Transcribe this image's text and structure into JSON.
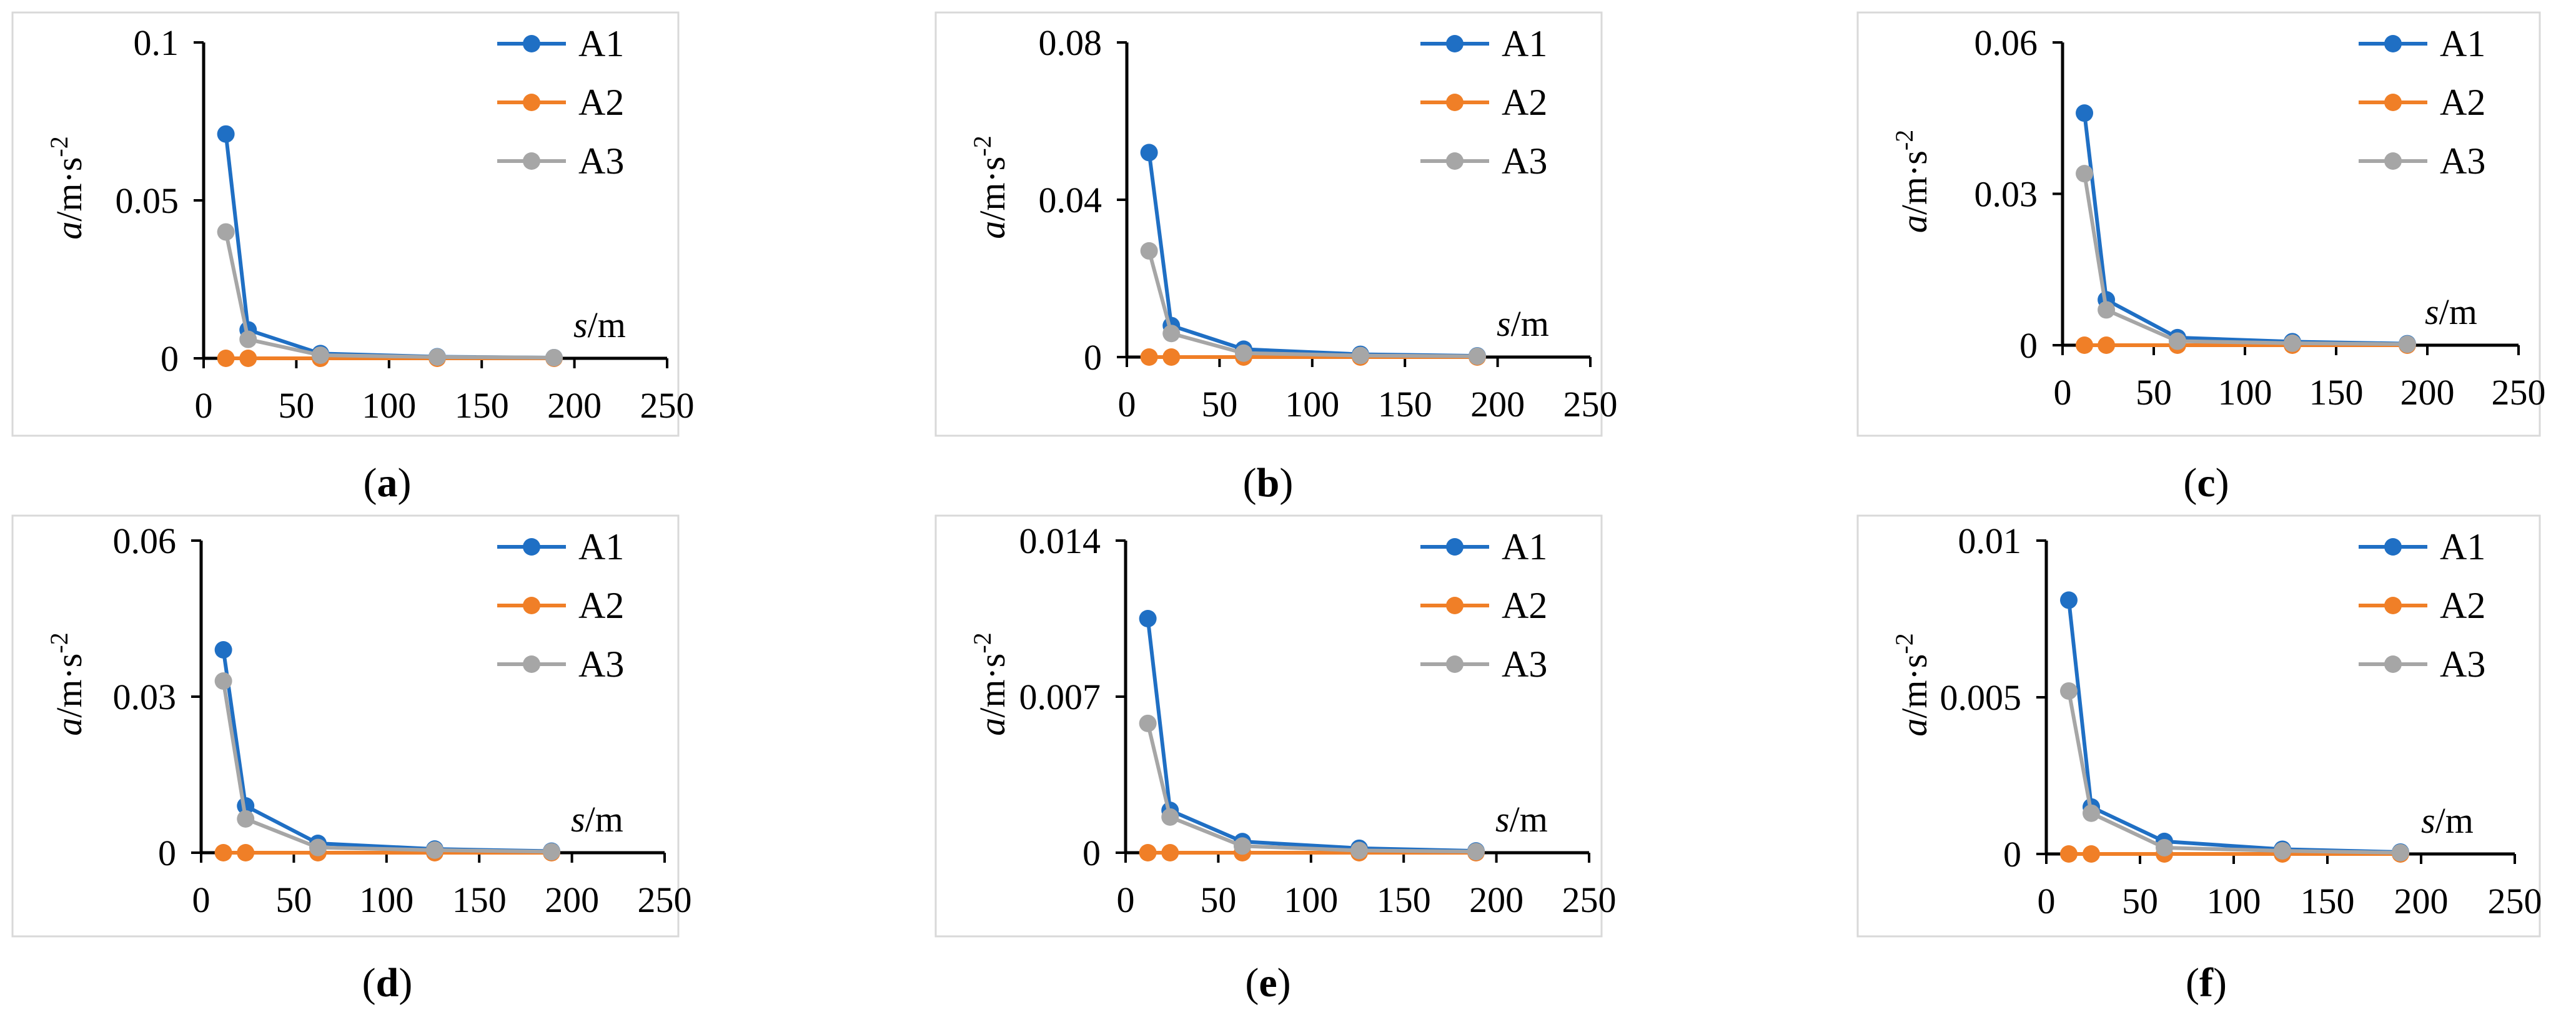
{
  "figure": {
    "caption_labels": [
      "(a)",
      "(b)",
      "(c)",
      "(d)",
      "(e)",
      "(f)"
    ]
  },
  "colors": {
    "A1": "#1f6fc4",
    "A2": "#f07f27",
    "A3": "#a6a6a6",
    "axis": "#000000",
    "frame": "#d9d9d9"
  },
  "chart_data": [
    {
      "type": "line",
      "panel": "a",
      "caption": "(a)",
      "xlabel": "s/m",
      "ylabel": "a/m·s-2",
      "xlim": [
        0,
        250
      ],
      "ylim": [
        0,
        0.1
      ],
      "xticks": [
        "0",
        "50",
        "100",
        "150",
        "200",
        "250"
      ],
      "yticks": [
        "0",
        "0.05",
        "0.1"
      ],
      "x": [
        12,
        24,
        63,
        126,
        189
      ],
      "series": [
        {
          "name": "A1",
          "values": [
            0.071,
            0.009,
            0.0015,
            0.0005,
            0.0002
          ]
        },
        {
          "name": "A2",
          "values": [
            0.0,
            0.0,
            0.0,
            0.0,
            0.0
          ]
        },
        {
          "name": "A3",
          "values": [
            0.04,
            0.006,
            0.001,
            0.0004,
            0.0002
          ]
        }
      ]
    },
    {
      "type": "line",
      "panel": "b",
      "caption": "(b)",
      "xlabel": "s/m",
      "ylabel": "a/m·s-2",
      "xlim": [
        0,
        250
      ],
      "ylim": [
        0,
        0.08
      ],
      "xticks": [
        "0",
        "50",
        "100",
        "150",
        "200",
        "250"
      ],
      "yticks": [
        "0",
        "0.04",
        "0.08"
      ],
      "x": [
        12,
        24,
        63,
        126,
        189
      ],
      "series": [
        {
          "name": "A1",
          "values": [
            0.052,
            0.008,
            0.002,
            0.0007,
            0.0003
          ]
        },
        {
          "name": "A2",
          "values": [
            0.0,
            0.0,
            0.0,
            0.0,
            0.0
          ]
        },
        {
          "name": "A3",
          "values": [
            0.027,
            0.006,
            0.001,
            0.0004,
            0.0002
          ]
        }
      ]
    },
    {
      "type": "line",
      "panel": "c",
      "caption": "(c)",
      "xlabel": "s/m",
      "ylabel": "a/m·s-2",
      "xlim": [
        0,
        250
      ],
      "ylim": [
        0,
        0.06
      ],
      "xticks": [
        "0",
        "50",
        "100",
        "150",
        "200",
        "250"
      ],
      "yticks": [
        "0",
        "0.03",
        "0.06"
      ],
      "x": [
        12,
        24,
        63,
        126,
        189
      ],
      "series": [
        {
          "name": "A1",
          "values": [
            0.046,
            0.009,
            0.0015,
            0.0007,
            0.0003
          ]
        },
        {
          "name": "A2",
          "values": [
            0.0,
            0.0,
            0.0,
            0.0,
            0.0
          ]
        },
        {
          "name": "A3",
          "values": [
            0.034,
            0.007,
            0.0008,
            0.0004,
            0.0002
          ]
        }
      ]
    },
    {
      "type": "line",
      "panel": "d",
      "caption": "(d)",
      "xlabel": "s/m",
      "ylabel": "a/m·s-2",
      "xlim": [
        0,
        250
      ],
      "ylim": [
        0,
        0.06
      ],
      "xticks": [
        "0",
        "50",
        "100",
        "150",
        "200",
        "250"
      ],
      "yticks": [
        "0",
        "0.03",
        "0.06"
      ],
      "x": [
        12,
        24,
        63,
        126,
        189
      ],
      "series": [
        {
          "name": "A1",
          "values": [
            0.039,
            0.009,
            0.0018,
            0.0007,
            0.0003
          ]
        },
        {
          "name": "A2",
          "values": [
            0.0,
            0.0,
            0.0,
            0.0,
            0.0
          ]
        },
        {
          "name": "A3",
          "values": [
            0.033,
            0.0065,
            0.001,
            0.0005,
            0.0002
          ]
        }
      ]
    },
    {
      "type": "line",
      "panel": "e",
      "caption": "(e)",
      "xlabel": "s/m",
      "ylabel": "a/m·s-2",
      "xlim": [
        0,
        250
      ],
      "ylim": [
        0,
        0.014
      ],
      "xticks": [
        "0",
        "50",
        "100",
        "150",
        "200",
        "250"
      ],
      "yticks": [
        "0",
        "0.007",
        "0.014"
      ],
      "x": [
        12,
        24,
        63,
        126,
        189
      ],
      "series": [
        {
          "name": "A1",
          "values": [
            0.0105,
            0.0019,
            0.0005,
            0.0002,
            8e-05
          ]
        },
        {
          "name": "A2",
          "values": [
            0.0,
            0.0,
            0.0,
            0.0,
            0.0
          ]
        },
        {
          "name": "A3",
          "values": [
            0.0058,
            0.0016,
            0.0003,
            0.0001,
            5e-05
          ]
        }
      ]
    },
    {
      "type": "line",
      "panel": "f",
      "caption": "(f)",
      "xlabel": "s/m",
      "ylabel": "a/m·s-2",
      "xlim": [
        0,
        250
      ],
      "ylim": [
        0,
        0.01
      ],
      "xticks": [
        "0",
        "50",
        "100",
        "150",
        "200",
        "250"
      ],
      "yticks": [
        "0",
        "0.005",
        "0.01"
      ],
      "x": [
        12,
        24,
        63,
        126,
        189
      ],
      "series": [
        {
          "name": "A1",
          "values": [
            0.0081,
            0.0015,
            0.0004,
            0.00015,
            6e-05
          ]
        },
        {
          "name": "A2",
          "values": [
            0.0,
            0.0,
            0.0,
            0.0,
            0.0
          ]
        },
        {
          "name": "A3",
          "values": [
            0.0052,
            0.0013,
            0.0002,
            0.0001,
            4e-05
          ]
        }
      ]
    }
  ]
}
